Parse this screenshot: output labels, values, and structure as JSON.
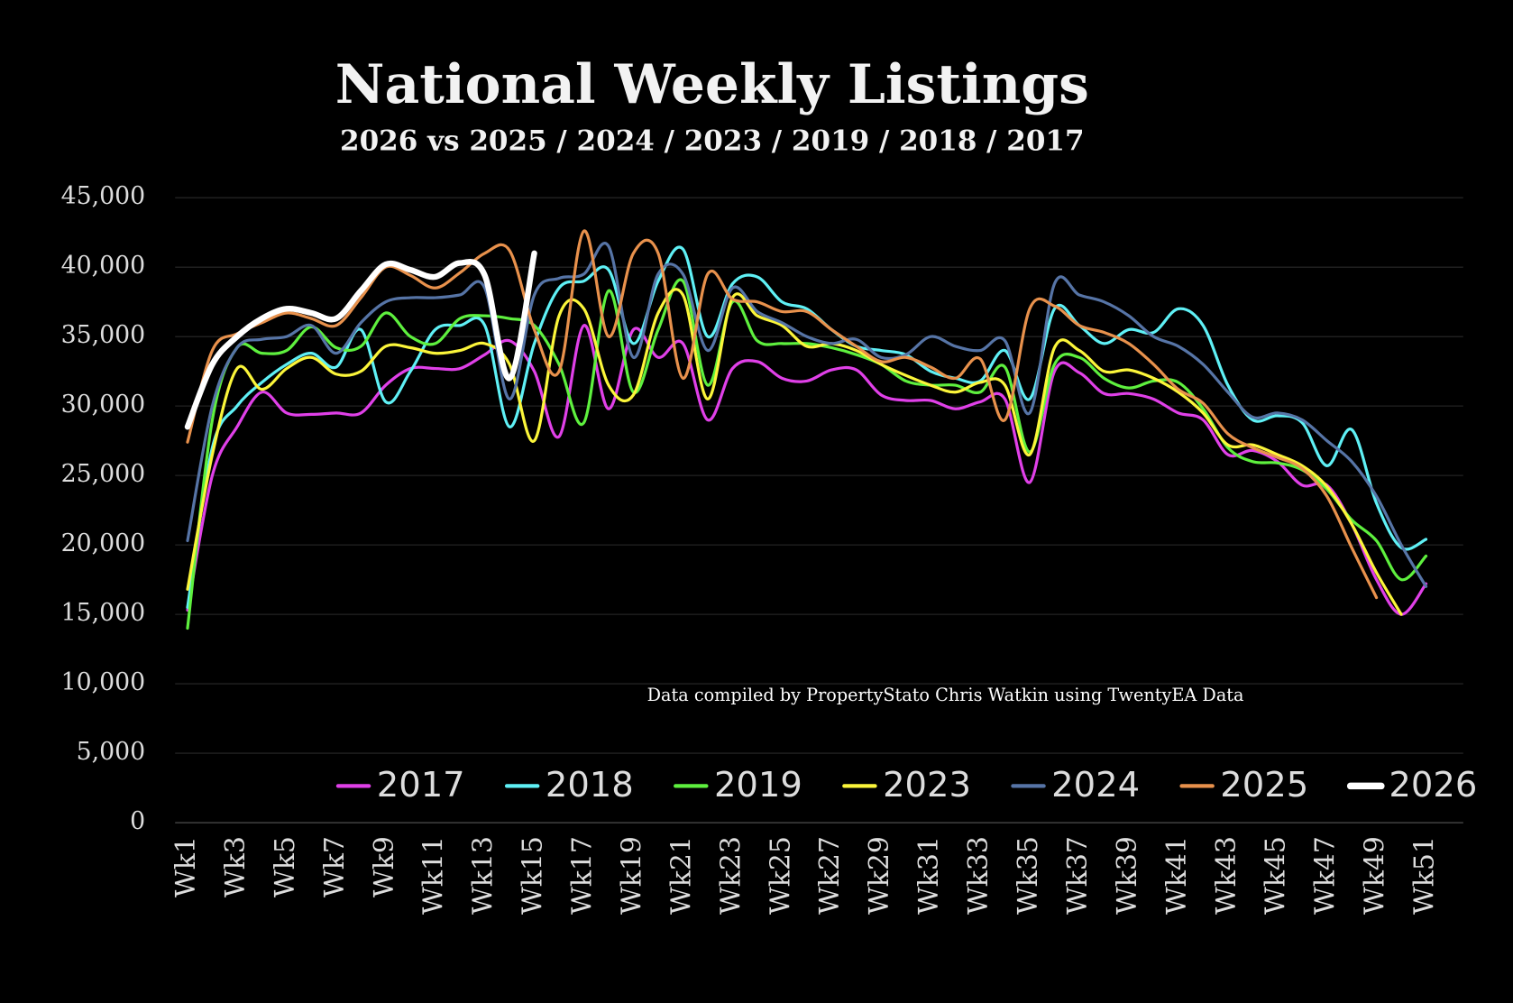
{
  "chart_data": {
    "type": "line",
    "title": "National Weekly Listings",
    "subtitle": "2026 vs 2025 / 2024 / 2023 / 2019 / 2018 / 2017",
    "annotation": "Data compiled by PropertyStato Chris Watkin using TwentyEA Data",
    "categories": [
      "Wk1",
      null,
      "Wk3",
      null,
      "Wk5",
      null,
      "Wk7",
      null,
      "Wk9",
      null,
      "Wk11",
      null,
      "Wk13",
      null,
      "Wk15",
      null,
      "Wk17",
      null,
      "Wk19",
      null,
      "Wk21",
      null,
      "Wk23",
      null,
      "Wk25",
      null,
      "Wk27",
      null,
      "Wk29",
      null,
      "Wk31",
      null,
      "Wk33",
      null,
      "Wk35",
      null,
      "Wk37",
      null,
      "Wk39",
      null,
      "Wk41",
      null,
      "Wk43",
      null,
      "Wk45",
      null,
      "Wk47",
      null,
      "Wk49",
      null,
      "Wk51",
      null
    ],
    "ylim": [
      0,
      45000
    ],
    "yticks": [
      0,
      {
        "value": 5000,
        "label": "5,000"
      },
      {
        "value": 10000,
        "label": "10,000"
      },
      {
        "value": 15000,
        "label": "15,000"
      },
      {
        "value": 20000,
        "label": "20,000"
      },
      {
        "value": 25000,
        "label": "25,000"
      },
      {
        "value": 30000,
        "label": "30,000"
      },
      {
        "value": 35000,
        "label": "35,000"
      },
      {
        "value": 40000,
        "label": "40,000"
      },
      {
        "value": 45000,
        "label": "45,000"
      }
    ],
    "grid": true,
    "legend_position": "bottom",
    "smooth": true,
    "series": [
      {
        "name": "2017",
        "color": "#e040e8",
        "line_width": 3,
        "values": [
          15300,
          25000,
          28500,
          31000,
          29500,
          29400,
          29500,
          29500,
          31500,
          32700,
          32700,
          32700,
          33700,
          34700,
          32500,
          27800,
          35800,
          29800,
          35500,
          33500,
          34500,
          29000,
          32700,
          33200,
          32000,
          31800,
          32600,
          32600,
          30800,
          30400,
          30400,
          29800,
          30300,
          30500,
          24500,
          32500,
          32400,
          30900,
          30900,
          30500,
          29500,
          29000,
          26500,
          26800,
          26000,
          24300,
          24300,
          21500,
          17500,
          15000,
          17200,
          null
        ]
      },
      {
        "name": "2018",
        "color": "#5ff0f5",
        "line_width": 3,
        "values": [
          15500,
          27000,
          30000,
          31700,
          33000,
          33800,
          32800,
          35500,
          30300,
          32500,
          35500,
          35800,
          35800,
          28500,
          34500,
          38500,
          39000,
          39800,
          34500,
          39000,
          41300,
          35000,
          38800,
          39300,
          37500,
          37000,
          35500,
          34300,
          34000,
          33700,
          32500,
          32000,
          31800,
          34000,
          30500,
          37000,
          35800,
          34500,
          35500,
          35300,
          37000,
          35800,
          31500,
          29000,
          29300,
          28800,
          25700,
          28300,
          23000,
          19800,
          20400,
          null
        ]
      },
      {
        "name": "2019",
        "color": "#5ef03e",
        "line_width": 3,
        "values": [
          14000,
          29000,
          34200,
          33800,
          34000,
          35700,
          34200,
          34300,
          36700,
          35000,
          34500,
          36300,
          36500,
          36300,
          35800,
          33000,
          28800,
          38300,
          31000,
          35500,
          39000,
          31500,
          37500,
          34700,
          34500,
          34500,
          34200,
          33700,
          33000,
          31800,
          31500,
          31500,
          31000,
          32800,
          26700,
          33000,
          33500,
          32000,
          31300,
          31800,
          31700,
          29800,
          27000,
          26000,
          25900,
          25400,
          24000,
          21800,
          20300,
          17500,
          19200,
          null
        ]
      },
      {
        "name": "2023",
        "color": "#fbf53a",
        "line_width": 3,
        "values": [
          16800,
          26500,
          32700,
          31200,
          32700,
          33500,
          32300,
          32500,
          34300,
          34200,
          33800,
          34000,
          34500,
          33000,
          27500,
          36500,
          37000,
          31500,
          30800,
          36700,
          38000,
          30500,
          37800,
          36500,
          35800,
          34300,
          34500,
          34000,
          33000,
          32200,
          31500,
          31000,
          31700,
          31500,
          26500,
          34200,
          34000,
          32500,
          32600,
          32000,
          31000,
          29500,
          27200,
          27200,
          26500,
          25700,
          24200,
          21500,
          18000,
          15000,
          null,
          null
        ]
      },
      {
        "name": "2024",
        "color": "#5674a6",
        "line_width": 3,
        "values": [
          20300,
          30000,
          34200,
          34800,
          35000,
          35800,
          33800,
          36000,
          37500,
          37800,
          37800,
          38000,
          38500,
          30500,
          38000,
          39200,
          39500,
          41500,
          33500,
          39500,
          39500,
          34000,
          38500,
          36800,
          36000,
          35000,
          34500,
          34800,
          33500,
          33700,
          35000,
          34300,
          34000,
          34700,
          29500,
          38800,
          38000,
          37500,
          36500,
          35000,
          34300,
          33000,
          31000,
          29200,
          29500,
          29000,
          27500,
          26000,
          23500,
          20000,
          17000,
          null
        ]
      },
      {
        "name": "2025",
        "color": "#e8914c",
        "line_width": 3,
        "values": [
          27400,
          34000,
          35200,
          36000,
          36700,
          36300,
          35800,
          37800,
          40000,
          39400,
          38500,
          39600,
          41000,
          41200,
          35500,
          32500,
          42600,
          35000,
          41000,
          41000,
          32000,
          39500,
          37700,
          37500,
          36800,
          36800,
          35500,
          34300,
          33200,
          33500,
          32800,
          32000,
          33400,
          29000,
          37000,
          37200,
          35800,
          35300,
          34500,
          33000,
          31200,
          30200,
          28000,
          27000,
          26300,
          25500,
          23500,
          19800,
          16200,
          null,
          null,
          null
        ]
      },
      {
        "name": "2026",
        "color": "#ffffff",
        "line_width": 6,
        "values": [
          28500,
          33000,
          35000,
          36300,
          37000,
          36700,
          36300,
          38300,
          40200,
          39800,
          39300,
          40300,
          39400,
          32000,
          41000,
          null,
          null,
          null,
          null,
          null,
          null,
          null,
          null,
          null,
          null,
          null,
          null,
          null,
          null,
          null,
          null,
          null,
          null,
          null,
          null,
          null,
          null,
          null,
          null,
          null,
          null,
          null,
          null,
          null,
          null,
          null,
          null,
          null,
          null,
          null,
          null,
          null
        ]
      }
    ]
  }
}
